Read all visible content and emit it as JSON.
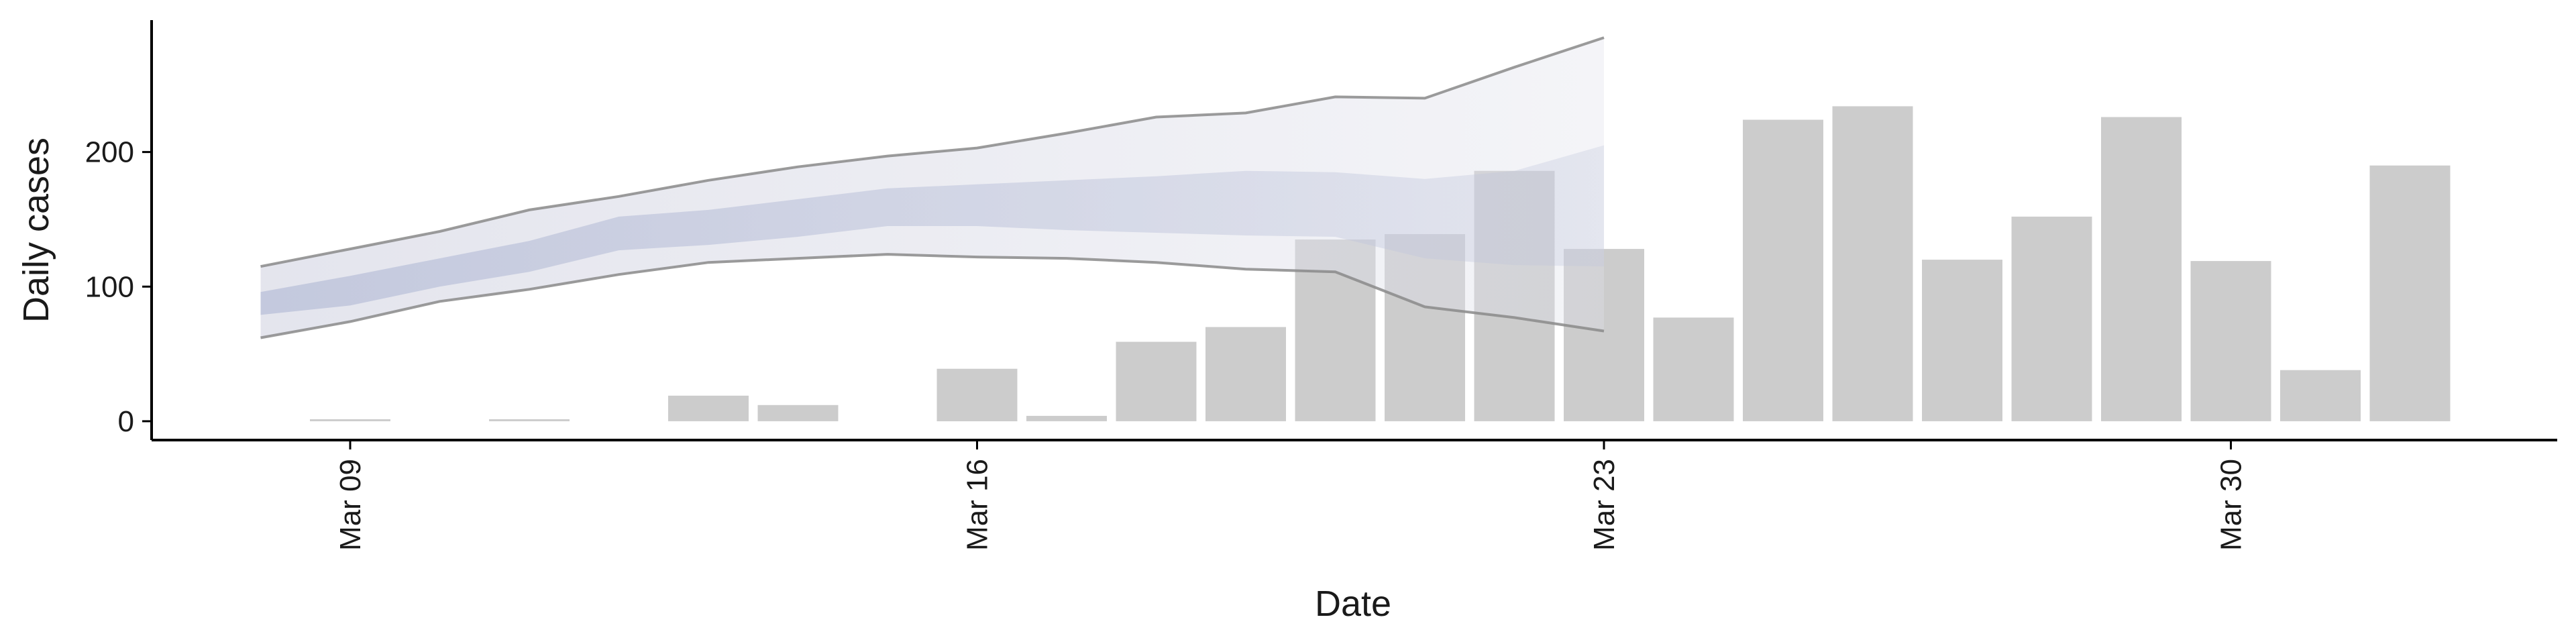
{
  "chart_data": {
    "type": "bar",
    "title": "",
    "xlabel": "Date",
    "ylabel": "Daily cases",
    "x_start": "2020-03-09",
    "x_ticks": [
      {
        "date": "2020-03-09",
        "label": "Mar 09"
      },
      {
        "date": "2020-03-16",
        "label": "Mar 16"
      },
      {
        "date": "2020-03-23",
        "label": "Mar 23"
      },
      {
        "date": "2020-03-30",
        "label": "Mar 30"
      }
    ],
    "y_ticks": [
      0,
      100,
      200
    ],
    "ylim": [
      -14,
      298
    ],
    "xlim": [
      "2020-03-05",
      "2020-04-03"
    ],
    "grid": false,
    "legend": "none",
    "colors": {
      "bar": "#cccccc",
      "band_outer": "#dfe0ea",
      "band_inner": "#bec4db",
      "band_line": "#8a8a8a",
      "axis": "#000000"
    },
    "bars": [
      {
        "x": "2020-03-09",
        "y": 1
      },
      {
        "x": "2020-03-11",
        "y": 1
      },
      {
        "x": "2020-03-13",
        "y": 19
      },
      {
        "x": "2020-03-14",
        "y": 12
      },
      {
        "x": "2020-03-16",
        "y": 39
      },
      {
        "x": "2020-03-17",
        "y": 4
      },
      {
        "x": "2020-03-18",
        "y": 59
      },
      {
        "x": "2020-03-19",
        "y": 70
      },
      {
        "x": "2020-03-20",
        "y": 135
      },
      {
        "x": "2020-03-21",
        "y": 139
      },
      {
        "x": "2020-03-22",
        "y": 186
      },
      {
        "x": "2020-03-23",
        "y": 128
      },
      {
        "x": "2020-03-24",
        "y": 77
      },
      {
        "x": "2020-03-25",
        "y": 224
      },
      {
        "x": "2020-03-26",
        "y": 234
      },
      {
        "x": "2020-03-27",
        "y": 120
      },
      {
        "x": "2020-03-28",
        "y": 152
      },
      {
        "x": "2020-03-29",
        "y": 226
      },
      {
        "x": "2020-03-30",
        "y": 119
      },
      {
        "x": "2020-03-31",
        "y": 38
      },
      {
        "x": "2020-04-01",
        "y": 190
      }
    ],
    "band": {
      "x": [
        "2020-03-08",
        "2020-03-09",
        "2020-03-10",
        "2020-03-11",
        "2020-03-12",
        "2020-03-13",
        "2020-03-14",
        "2020-03-15",
        "2020-03-16",
        "2020-03-17",
        "2020-03-18",
        "2020-03-19",
        "2020-03-20",
        "2020-03-21",
        "2020-03-22",
        "2020-03-23"
      ],
      "outer_low": [
        62,
        74,
        89,
        98,
        109,
        118,
        121,
        124,
        122,
        121,
        118,
        113,
        111,
        85,
        77,
        67
      ],
      "outer_high": [
        115,
        128,
        141,
        157,
        167,
        179,
        189,
        197,
        203,
        214,
        226,
        229,
        241,
        240,
        263,
        285
      ],
      "inner_low": [
        79,
        86,
        100,
        111,
        127,
        131,
        137,
        145,
        145,
        142,
        140,
        138,
        137,
        121,
        116,
        115
      ],
      "inner_high": [
        96,
        108,
        121,
        134,
        152,
        157,
        165,
        173,
        176,
        179,
        182,
        186,
        185,
        180,
        186,
        205
      ]
    }
  }
}
